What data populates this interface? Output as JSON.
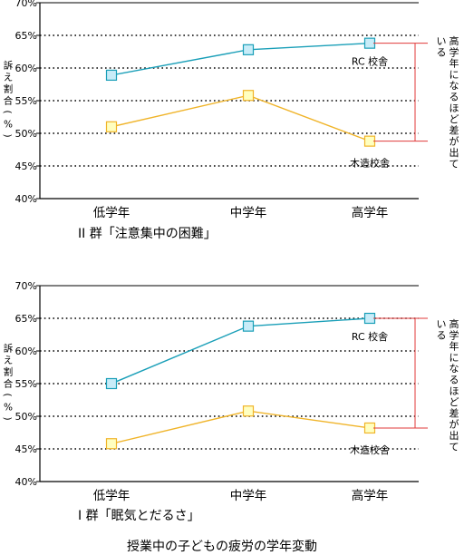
{
  "chart_data": [
    {
      "type": "line",
      "caption": "II 群「注意集中の困難」",
      "categories": [
        "低学年",
        "中学年",
        "高学年"
      ],
      "y_ticks": [
        "70%",
        "65%",
        "60%",
        "55%",
        "50%",
        "45%",
        "40%"
      ],
      "ylim": [
        40,
        70
      ],
      "ylabel": "訴え割合（%）",
      "series": [
        {
          "name": "RC 校舎",
          "color": "#1a9fb8",
          "fill": "#c8ecf8",
          "values": [
            58.9,
            62.8,
            63.8
          ]
        },
        {
          "name": "木造校舎",
          "color": "#f0b429",
          "fill": "#ffffc0",
          "values": [
            51.0,
            55.8,
            48.8
          ]
        }
      ],
      "annotation": "高学年になるほど差が出ている",
      "grid": "dotted",
      "legend": "right"
    },
    {
      "type": "line",
      "caption": "I 群「眠気とだるさ」",
      "categories": [
        "低学年",
        "中学年",
        "高学年"
      ],
      "y_ticks": [
        "70%",
        "65%",
        "60%",
        "55%",
        "50%",
        "45%",
        "40%"
      ],
      "ylim": [
        40,
        70
      ],
      "ylabel": "訴え割合（%）",
      "series": [
        {
          "name": "RC 校舎",
          "color": "#1a9fb8",
          "fill": "#c8ecf8",
          "values": [
            55.0,
            63.8,
            65.0
          ]
        },
        {
          "name": "木造校舎",
          "color": "#f0b429",
          "fill": "#ffffc0",
          "values": [
            45.8,
            50.8,
            48.2
          ]
        }
      ],
      "annotation": "高学年になるほど差が出ている",
      "grid": "dotted",
      "legend": "right"
    }
  ],
  "footer": "授業中の子どもの疲労の学年変動"
}
